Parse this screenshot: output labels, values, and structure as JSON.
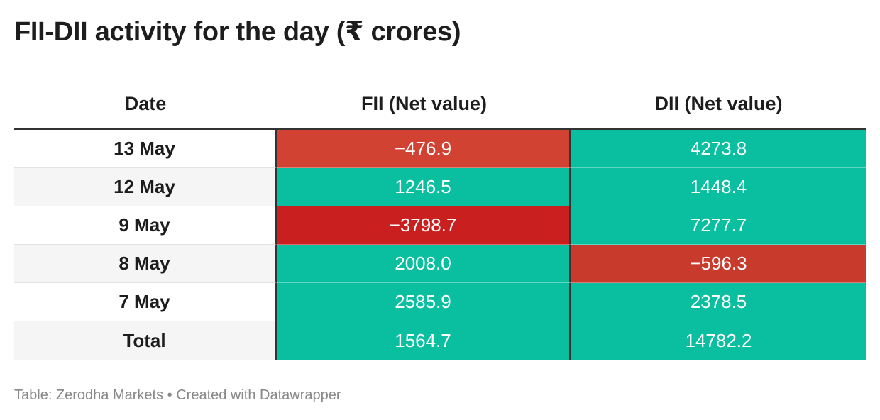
{
  "title": "FII-DII activity for the day (₹ crores)",
  "columns": [
    "Date",
    "FII (Net value)",
    "DII (Net value)"
  ],
  "source": "Table: Zerodha Markets • Created with Datawrapper",
  "colors": {
    "positive": "#0abfa0",
    "negative_scale": {
      "-476.9": "#d14233",
      "-3798.7": "#c91f1f",
      "-596.3": "#c73a2c"
    },
    "row_even_bg": "#ffffff",
    "row_odd_bg": "#f5f5f5"
  },
  "rows": [
    {
      "date": "13 May",
      "fii": "−476.9",
      "dii": "4273.8"
    },
    {
      "date": "12 May",
      "fii": "1246.5",
      "dii": "1448.4"
    },
    {
      "date": "9 May",
      "fii": "−3798.7",
      "dii": "7277.7"
    },
    {
      "date": "8 May",
      "fii": "2008.0",
      "dii": "−596.3"
    },
    {
      "date": "7 May",
      "fii": "2585.9",
      "dii": "2378.5"
    },
    {
      "date": "Total",
      "fii": "1564.7",
      "dii": "14782.2"
    }
  ],
  "chart_data": {
    "type": "table",
    "title": "FII-DII activity for the day (₹ crores)",
    "columns": [
      "Date",
      "FII (Net value)",
      "DII (Net value)"
    ],
    "categories": [
      "13 May",
      "12 May",
      "9 May",
      "8 May",
      "7 May",
      "Total"
    ],
    "series": [
      {
        "name": "FII (Net value)",
        "values": [
          -476.9,
          1246.5,
          -3798.7,
          2008.0,
          2585.9,
          1564.7
        ]
      },
      {
        "name": "DII (Net value)",
        "values": [
          4273.8,
          1448.4,
          7277.7,
          -596.3,
          2378.5,
          14782.2
        ]
      }
    ]
  }
}
